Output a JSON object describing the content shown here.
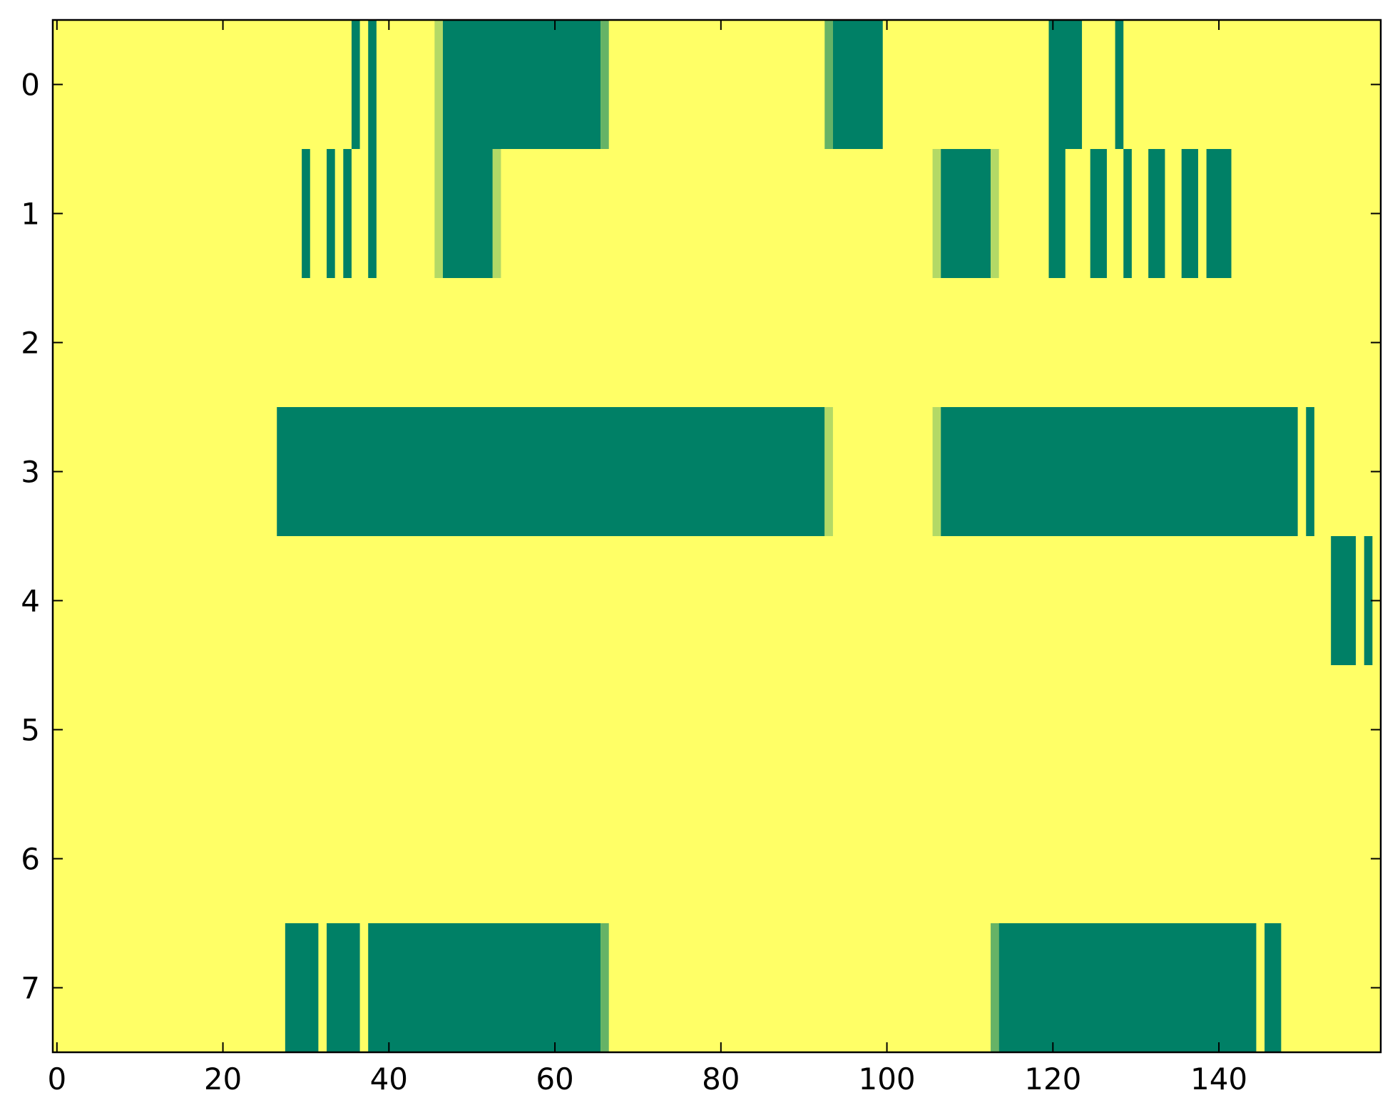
{
  "chart_data": {
    "type": "heatmap",
    "title": "",
    "xlabel": "",
    "ylabel": "",
    "xlim": [
      -0.5,
      159.5
    ],
    "ylim": [
      7.5,
      -0.5
    ],
    "x_ticks": [
      0,
      20,
      40,
      60,
      80,
      100,
      120,
      140
    ],
    "y_ticks": [
      0,
      1,
      2,
      3,
      4,
      5,
      6,
      7
    ],
    "n_cols": 160,
    "n_rows": 8,
    "grid": false,
    "legend": "none",
    "colormap": "summer_r",
    "value_range": [
      0,
      1
    ],
    "background_value": 0,
    "colors": {
      "low": "#ffff66",
      "high": "#008066",
      "mid_light": "#b2d866",
      "mid_dark": "#66b266"
    },
    "rows": [
      {
        "row": 0,
        "segments": [
          {
            "start": 36,
            "end": 36,
            "value": 1
          },
          {
            "start": 38,
            "end": 38,
            "value": 1
          },
          {
            "start": 46,
            "end": 46,
            "value": 0.3
          },
          {
            "start": 47,
            "end": 65,
            "value": 1
          },
          {
            "start": 66,
            "end": 66,
            "value": 0.6
          },
          {
            "start": 93,
            "end": 93,
            "value": 0.6
          },
          {
            "start": 94,
            "end": 99,
            "value": 1
          },
          {
            "start": 120,
            "end": 123,
            "value": 1
          },
          {
            "start": 128,
            "end": 128,
            "value": 1
          }
        ]
      },
      {
        "row": 1,
        "segments": [
          {
            "start": 30,
            "end": 30,
            "value": 1
          },
          {
            "start": 33,
            "end": 33,
            "value": 1
          },
          {
            "start": 35,
            "end": 35,
            "value": 1
          },
          {
            "start": 38,
            "end": 38,
            "value": 1
          },
          {
            "start": 46,
            "end": 46,
            "value": 0.3
          },
          {
            "start": 47,
            "end": 52,
            "value": 1
          },
          {
            "start": 53,
            "end": 53,
            "value": 0.3
          },
          {
            "start": 106,
            "end": 106,
            "value": 0.3
          },
          {
            "start": 107,
            "end": 112,
            "value": 1
          },
          {
            "start": 113,
            "end": 113,
            "value": 0.3
          },
          {
            "start": 120,
            "end": 121,
            "value": 1
          },
          {
            "start": 125,
            "end": 126,
            "value": 1
          },
          {
            "start": 129,
            "end": 129,
            "value": 1
          },
          {
            "start": 132,
            "end": 133,
            "value": 1
          },
          {
            "start": 136,
            "end": 137,
            "value": 1
          },
          {
            "start": 139,
            "end": 141,
            "value": 1
          }
        ]
      },
      {
        "row": 2,
        "segments": []
      },
      {
        "row": 3,
        "segments": [
          {
            "start": 27,
            "end": 92,
            "value": 1
          },
          {
            "start": 93,
            "end": 93,
            "value": 0.3
          },
          {
            "start": 106,
            "end": 106,
            "value": 0.3
          },
          {
            "start": 107,
            "end": 149,
            "value": 1
          },
          {
            "start": 151,
            "end": 151,
            "value": 1
          }
        ]
      },
      {
        "row": 4,
        "segments": [
          {
            "start": 154,
            "end": 156,
            "value": 1
          },
          {
            "start": 158,
            "end": 158,
            "value": 1
          }
        ]
      },
      {
        "row": 5,
        "segments": []
      },
      {
        "row": 6,
        "segments": []
      },
      {
        "row": 7,
        "segments": [
          {
            "start": 28,
            "end": 31,
            "value": 1
          },
          {
            "start": 33,
            "end": 36,
            "value": 1
          },
          {
            "start": 38,
            "end": 65,
            "value": 1
          },
          {
            "start": 66,
            "end": 66,
            "value": 0.6
          },
          {
            "start": 113,
            "end": 113,
            "value": 0.6
          },
          {
            "start": 114,
            "end": 144,
            "value": 1
          },
          {
            "start": 146,
            "end": 147,
            "value": 1
          }
        ]
      }
    ]
  }
}
